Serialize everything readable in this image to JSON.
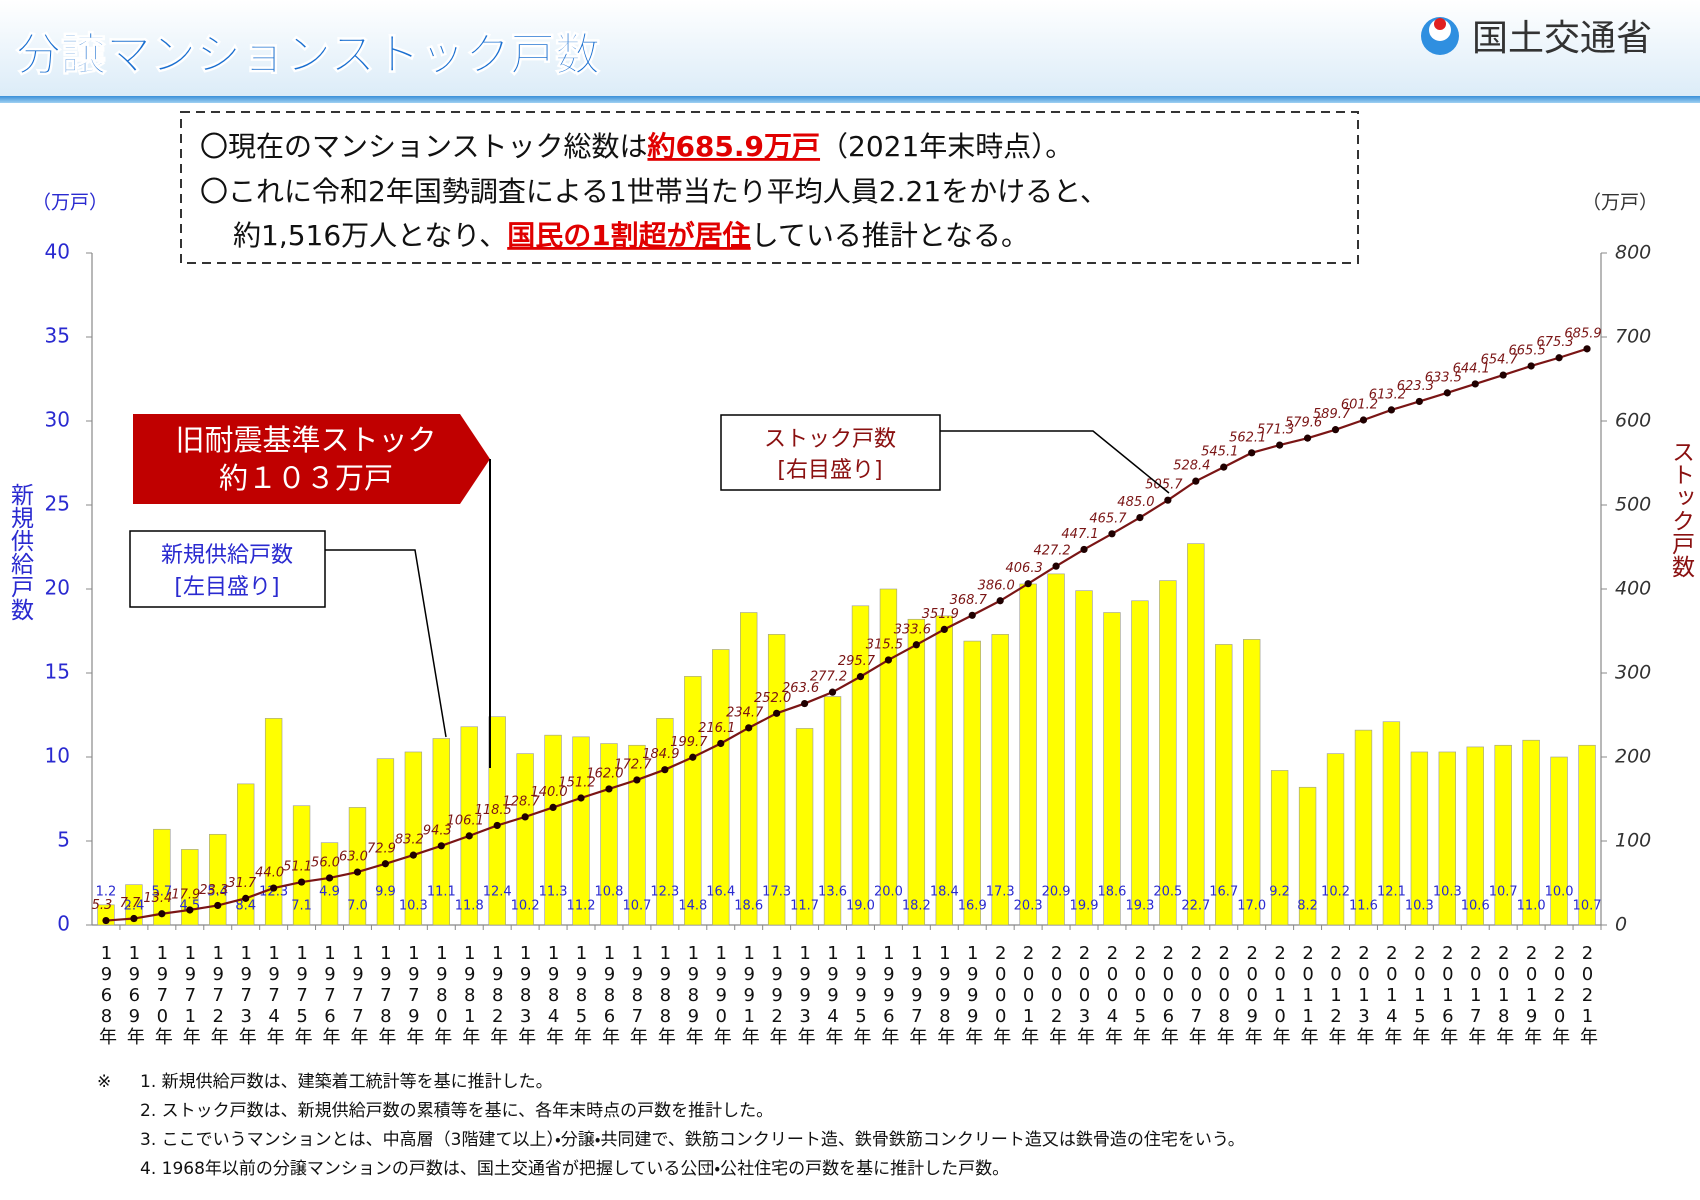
{
  "header": {
    "title": "分譲マンションストック戸数",
    "logo": "国土交通省"
  },
  "summary": [
    [
      "〇現在のマンションストック総数は",
      "約685.9万戸",
      "（2021年末時点）。"
    ],
    [
      "〇これに令和2年国勢調査による1世帯当たり平均人員2.21をかけると、"
    ],
    [
      "約1,516万人となり、",
      "国民の1割超が居住",
      "している推計となる。"
    ]
  ],
  "chart_data": {
    "type": "bar-line",
    "y_unit": "（万戸）",
    "y2_unit": "（万戸）",
    "annotations": {
      "old_standard": [
        "旧耐震基準ストック",
        "約１０３万戸"
      ],
      "left_scale": "[左目盛り]",
      "right_scale": "[右目盛り]"
    },
    "categories": [
      "1968年",
      "1969年",
      "1970年",
      "1971年",
      "1972年",
      "1973年",
      "1974年",
      "1975年",
      "1976年",
      "1977年",
      "1978年",
      "1979年",
      "1980年",
      "1981年",
      "1982年",
      "1983年",
      "1984年",
      "1985年",
      "1986年",
      "1987年",
      "1988年",
      "1989年",
      "1990年",
      "1991年",
      "1992年",
      "1993年",
      "1994年",
      "1995年",
      "1996年",
      "1997年",
      "1998年",
      "1999年",
      "2000年",
      "2001年",
      "2002年",
      "2003年",
      "2004年",
      "2005年",
      "2006年",
      "2007年",
      "2008年",
      "2009年",
      "2010年",
      "2011年",
      "2012年",
      "2013年",
      "2014年",
      "2015年",
      "2016年",
      "2017年",
      "2018年",
      "2019年",
      "2020年",
      "2021年"
    ],
    "series": [
      {
        "name": "新規供給戸数",
        "type": "bar",
        "axis": "y",
        "color": "#ffff00",
        "label_color": "#2a2ad0",
        "values": [
          1.2,
          2.4,
          5.7,
          4.5,
          5.4,
          8.4,
          12.3,
          7.1,
          4.9,
          7.0,
          9.9,
          10.3,
          11.1,
          11.8,
          12.4,
          10.2,
          11.3,
          11.2,
          10.8,
          10.7,
          12.3,
          14.8,
          16.4,
          18.6,
          17.3,
          11.7,
          13.6,
          19.0,
          20.0,
          18.2,
          18.4,
          16.9,
          17.3,
          20.3,
          20.9,
          19.9,
          18.6,
          19.3,
          20.5,
          22.7,
          16.7,
          17.0,
          9.2,
          8.2,
          10.2,
          11.6,
          12.1,
          10.3,
          10.3,
          10.6,
          10.7,
          11.0,
          10.0,
          10.7
        ],
        "value_labels": [
          "1.2",
          "2.4",
          "5.7",
          "4.5",
          "5.4",
          "8.4",
          "12.3",
          "7.1",
          "4.9",
          "7.0",
          "9.9",
          "10.3",
          "11.1",
          "11.8",
          "12.4",
          "10.2",
          "11.3",
          "11.2",
          "10.8",
          "10.7",
          "12.3",
          "14.8",
          "16.4",
          "18.6",
          "17.3",
          "11.7",
          "13.6",
          "19.0",
          "20.0",
          "18.2",
          "18.4",
          "16.9",
          "17.3",
          "20.3",
          "20.9",
          "19.9",
          "18.6",
          "19.3",
          "20.5",
          "22.7",
          "16.7",
          "17.0",
          "9.2",
          "8.2",
          "10.2",
          "11.6",
          "12.1",
          "10.3",
          "10.3",
          "10.6",
          "10.7",
          "11.0",
          "10.0",
          "10.7"
        ]
      },
      {
        "name": "ストック戸数",
        "type": "line",
        "axis": "y2",
        "color": "#7a1515",
        "marker_color": "#200000",
        "values": [
          5.3,
          7.7,
          13.4,
          17.9,
          23.3,
          31.7,
          44.0,
          51.1,
          56.0,
          63.0,
          72.9,
          83.2,
          94.3,
          106.1,
          118.5,
          128.7,
          140.0,
          151.2,
          162.0,
          172.7,
          184.9,
          199.7,
          216.1,
          234.7,
          252.0,
          263.6,
          277.2,
          295.7,
          315.5,
          333.6,
          351.9,
          368.7,
          386.0,
          406.3,
          427.2,
          447.1,
          465.7,
          485.0,
          505.7,
          528.4,
          545.1,
          562.1,
          571.3,
          579.6,
          589.7,
          601.2,
          613.2,
          623.3,
          633.5,
          644.1,
          654.7,
          665.5,
          675.3,
          685.9
        ],
        "value_labels": [
          "5.3",
          "7.7",
          "13.4",
          "17.9",
          "23.3",
          "31.7",
          "44.0",
          "51.1",
          "56.0",
          "63.0",
          "72.9",
          "83.2",
          "94.3",
          "106.1",
          "118.5",
          "128.7",
          "140.0",
          "151.2",
          "162.0",
          "172.7",
          "184.9",
          "199.7",
          "216.1",
          "234.7",
          "252.0",
          "263.6",
          "277.2",
          "295.7",
          "315.5",
          "333.6",
          "351.9",
          "368.7",
          "386.0",
          "406.3",
          "427.2",
          "447.1",
          "465.7",
          "485.0",
          "505.7",
          "528.4",
          "545.1",
          "562.1",
          "571.3",
          "579.6",
          "589.7",
          "601.2",
          "613.2",
          "623.3",
          "633.5",
          "644.1",
          "654.7",
          "665.5",
          "675.3",
          "685.9"
        ]
      }
    ],
    "ylim": [
      0,
      40
    ],
    "yticks": [
      0,
      5,
      10,
      15,
      20,
      25,
      30,
      35,
      40
    ],
    "y2lim": [
      0,
      800
    ],
    "y2ticks": [
      0,
      100,
      200,
      300,
      400,
      500,
      600,
      700,
      800
    ],
    "grid": false
  },
  "notes": {
    "marker": "※",
    "items": [
      "1. 新規供給戸数は、建築着工統計等を基に推計した。",
      "2. ストック戸数は、新規供給戸数の累積等を基に、各年末時点の戸数を推計した。",
      "3. ここでいうマンションとは、中高層（3階建て以上）・分譲・共同建で、鉄筋コンクリート造、鉄骨鉄筋コンクリート造又は鉄骨造の住宅をいう。",
      "4. 1968年以前の分譲マンションの戸数は、国土交通省が把握している公団・公社住宅の戸数を基に推計した戸数。"
    ]
  }
}
